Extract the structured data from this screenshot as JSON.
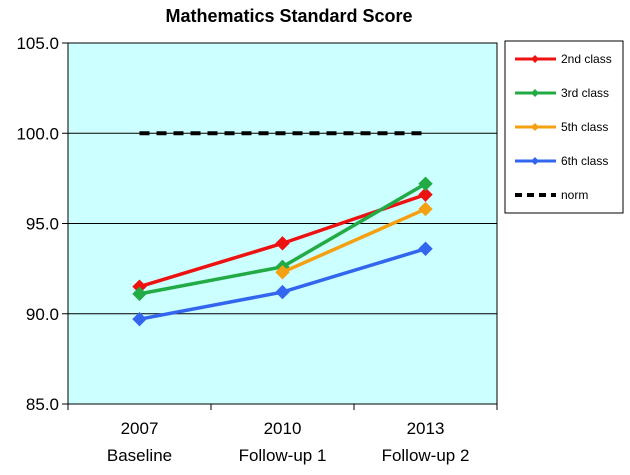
{
  "chart_data": {
    "type": "line",
    "title": "Mathematics Standard Score",
    "xlabel": "",
    "ylabel": "",
    "categories": [
      {
        "line1": "2007",
        "line2": "Baseline"
      },
      {
        "line1": "2010",
        "line2": "Follow-up 1"
      },
      {
        "line1": "2013",
        "line2": "Follow-up 2"
      }
    ],
    "ylim": [
      85.0,
      105.0
    ],
    "yticks": [
      "85.0",
      "90.0",
      "95.0",
      "100.0",
      "105.0"
    ],
    "grid": true,
    "plot_background": "#ccffff",
    "legend_position": "right",
    "series": [
      {
        "name": "2nd class",
        "color": "#ee1111",
        "values": [
          91.5,
          93.9,
          96.6
        ],
        "style": "solid",
        "marker": "diamond"
      },
      {
        "name": "3rd class",
        "color": "#22aa44",
        "values": [
          91.1,
          92.6,
          97.2
        ],
        "style": "solid",
        "marker": "diamond"
      },
      {
        "name": "5th class",
        "color": "#f5a011",
        "values": [
          null,
          92.3,
          95.8
        ],
        "style": "solid",
        "marker": "diamond"
      },
      {
        "name": "6th class",
        "color": "#3366ee",
        "values": [
          89.7,
          91.2,
          93.6
        ],
        "style": "solid",
        "marker": "diamond"
      },
      {
        "name": "norm",
        "color": "#000000",
        "values": [
          100.0,
          100.0,
          100.0
        ],
        "style": "dashed",
        "marker": "none"
      }
    ]
  }
}
